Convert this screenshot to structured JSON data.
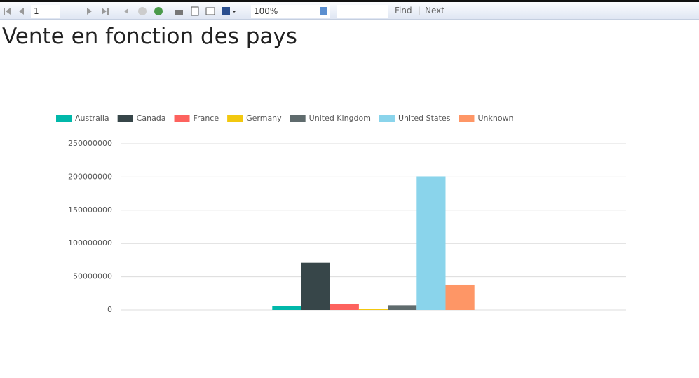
{
  "toolbar": {
    "page": "1",
    "zoom": "100%",
    "find": "Find",
    "next": "Next"
  },
  "chart_data": {
    "type": "bar",
    "title": "Vente en fonction des pays",
    "categories": [
      null
    ],
    "series": [
      {
        "name": "Australia",
        "color": "#01b8aa",
        "values": [
          6000000
        ]
      },
      {
        "name": "Canada",
        "color": "#374649",
        "values": [
          71000000
        ]
      },
      {
        "name": "France",
        "color": "#fd625e",
        "values": [
          9500000
        ]
      },
      {
        "name": "Germany",
        "color": "#f2c80f",
        "values": [
          2000000
        ]
      },
      {
        "name": "United Kingdom",
        "color": "#5f6b6d",
        "values": [
          7000000
        ]
      },
      {
        "name": "United States",
        "color": "#8ad4eb",
        "values": [
          201000000
        ]
      },
      {
        "name": "Unknown",
        "color": "#fe9666",
        "values": [
          38000000
        ]
      }
    ],
    "ylim": [
      0,
      250000000
    ],
    "yticks": [
      0,
      50000000,
      100000000,
      150000000,
      200000000,
      250000000
    ],
    "grid": true,
    "legend": "top"
  }
}
